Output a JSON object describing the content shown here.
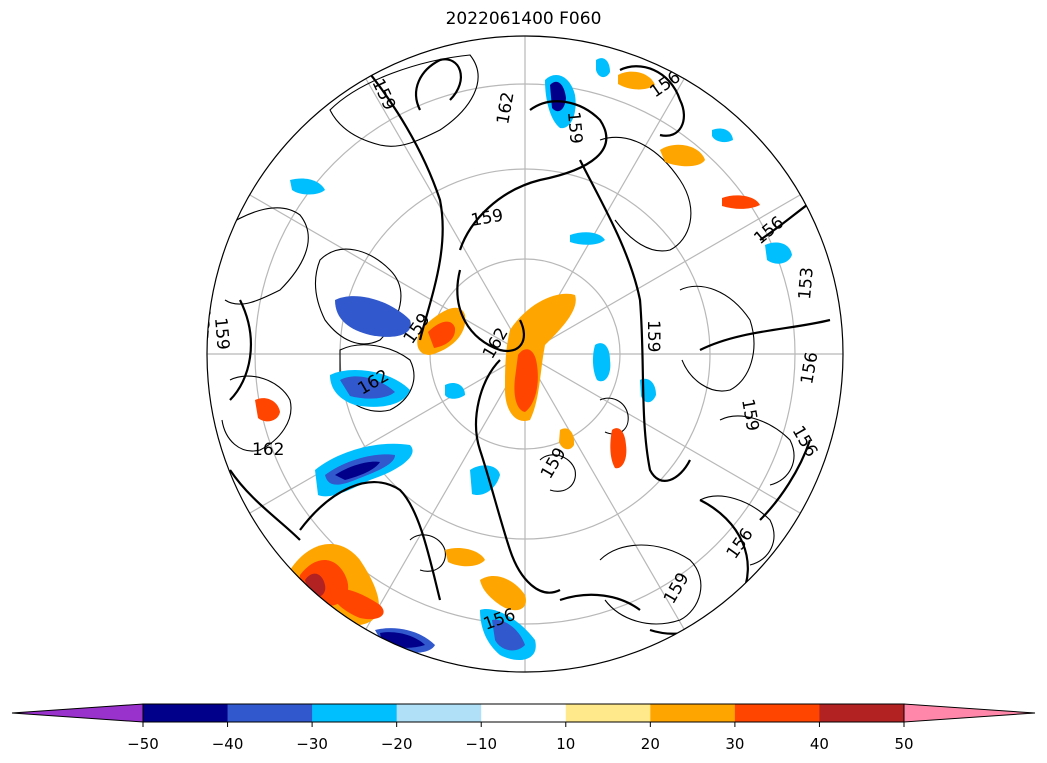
{
  "title": "2022061400 F060",
  "contour_labels": [
    "159",
    "162",
    "159",
    "159",
    "156",
    "159",
    "156",
    "153",
    "159",
    "162",
    "156",
    "159",
    "156",
    "162",
    "159",
    "156",
    "159",
    "156",
    "159",
    "156",
    "162"
  ],
  "colorbar": {
    "ticks": [
      "−50",
      "−40",
      "−30",
      "−20",
      "−10",
      "10",
      "20",
      "30",
      "40",
      "50"
    ],
    "under_color": "#9932CC",
    "over_color": "#FF88AA",
    "bins": [
      {
        "color": "#00008B"
      },
      {
        "color": "#3158CC"
      },
      {
        "color": "#00BFFF"
      },
      {
        "color": "#B0E0F8"
      },
      {
        "color": "#FFFFFF"
      },
      {
        "color": "#FFE98A"
      },
      {
        "color": "#FFA500"
      },
      {
        "color": "#FF4500"
      },
      {
        "color": "#B22222"
      }
    ]
  }
}
